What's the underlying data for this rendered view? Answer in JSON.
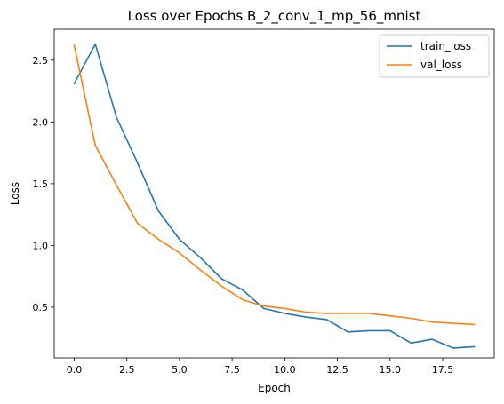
{
  "chart_data": {
    "type": "line",
    "title": "Loss over Epochs B_2_conv_1_mp_56_mnist",
    "xlabel": "Epoch",
    "ylabel": "Loss",
    "x": [
      0,
      1,
      2,
      3,
      4,
      5,
      6,
      7,
      8,
      9,
      10,
      11,
      12,
      13,
      14,
      15,
      16,
      17,
      18,
      19
    ],
    "xlim": [
      -0.95,
      19.95
    ],
    "ylim": [
      0.09,
      2.75
    ],
    "x_ticks": [
      0.0,
      2.5,
      5.0,
      7.5,
      10.0,
      12.5,
      15.0,
      17.5
    ],
    "x_tick_labels": [
      "0.0",
      "2.5",
      "5.0",
      "7.5",
      "10.0",
      "12.5",
      "15.0",
      "17.5"
    ],
    "y_ticks": [
      0.5,
      1.0,
      1.5,
      2.0,
      2.5
    ],
    "y_tick_labels": [
      "0.5",
      "1.0",
      "1.5",
      "2.0",
      "2.5"
    ],
    "grid": false,
    "legend_position": "top-right",
    "series": [
      {
        "name": "train_loss",
        "color": "#1f77b4",
        "values": [
          2.31,
          2.63,
          2.04,
          1.67,
          1.28,
          1.05,
          0.9,
          0.73,
          0.64,
          0.49,
          0.45,
          0.42,
          0.4,
          0.3,
          0.31,
          0.31,
          0.21,
          0.24,
          0.17,
          0.18
        ]
      },
      {
        "name": "val_loss",
        "color": "#ff7f0e",
        "values": [
          2.62,
          1.81,
          1.49,
          1.18,
          1.05,
          0.94,
          0.8,
          0.67,
          0.56,
          0.51,
          0.49,
          0.46,
          0.45,
          0.45,
          0.45,
          0.43,
          0.41,
          0.38,
          0.37,
          0.36
        ]
      }
    ]
  }
}
